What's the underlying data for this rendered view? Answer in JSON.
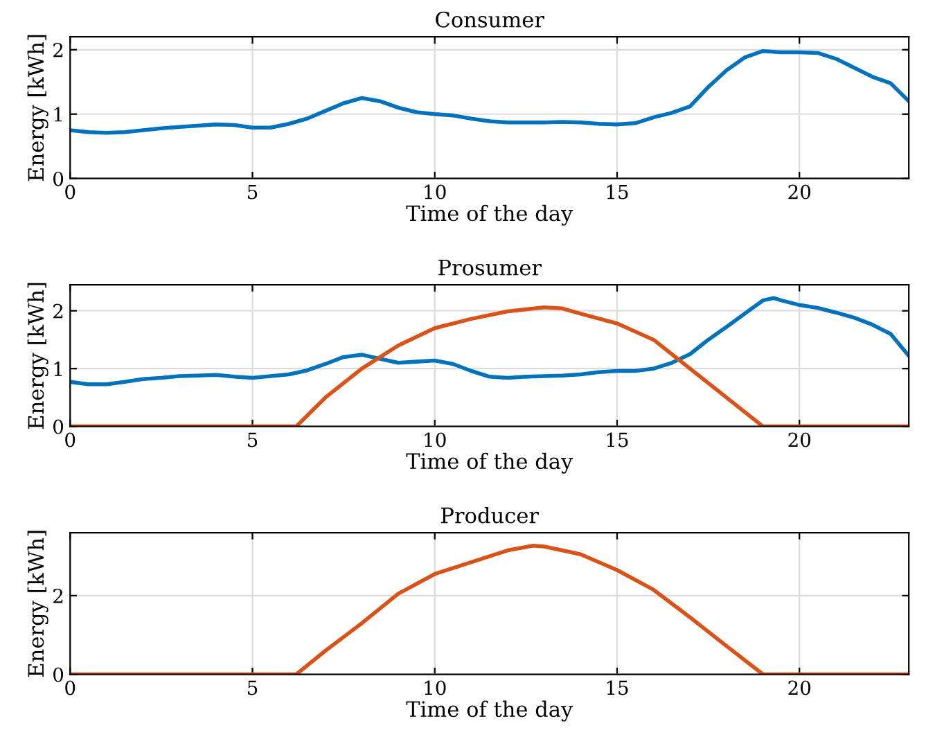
{
  "chart_data": [
    {
      "type": "line",
      "title": "Consumer",
      "xlabel": "Time of the day",
      "ylabel": "Energy [kWh]",
      "xlim": [
        0,
        23
      ],
      "xticks": [
        0,
        5,
        10,
        15,
        20
      ],
      "ylim": [
        0,
        2.2
      ],
      "yticks": [
        0,
        1,
        2
      ],
      "grid": true,
      "series": [
        {
          "color": "#0072bd",
          "x": [
            0,
            0.5,
            1,
            1.5,
            2,
            2.5,
            3,
            3.5,
            4,
            4.5,
            5,
            5.5,
            6,
            6.5,
            7,
            7.5,
            8,
            8.5,
            9,
            9.5,
            10,
            10.5,
            11,
            11.5,
            12,
            13,
            13.5,
            14,
            14.5,
            15,
            15.5,
            16,
            16.5,
            17,
            17.5,
            18,
            18.5,
            19,
            19.5,
            20,
            20.5,
            21,
            21.5,
            22,
            22.5,
            23
          ],
          "values": [
            0.75,
            0.72,
            0.71,
            0.72,
            0.75,
            0.78,
            0.8,
            0.82,
            0.84,
            0.83,
            0.79,
            0.79,
            0.85,
            0.93,
            1.05,
            1.17,
            1.25,
            1.2,
            1.1,
            1.03,
            1.0,
            0.98,
            0.93,
            0.89,
            0.87,
            0.87,
            0.88,
            0.87,
            0.85,
            0.84,
            0.86,
            0.95,
            1.02,
            1.12,
            1.42,
            1.68,
            1.88,
            1.98,
            1.96,
            1.96,
            1.95,
            1.86,
            1.72,
            1.58,
            1.48,
            1.2
          ]
        }
      ]
    },
    {
      "type": "line",
      "title": "Prosumer",
      "xlabel": "Time of the day",
      "ylabel": "Energy [kWh]",
      "xlim": [
        0,
        23
      ],
      "xticks": [
        0,
        5,
        10,
        15,
        20
      ],
      "ylim": [
        0,
        2.45
      ],
      "yticks": [
        0,
        1,
        2
      ],
      "grid": true,
      "series": [
        {
          "color": "#0072bd",
          "x": [
            0,
            0.5,
            1,
            1.5,
            2,
            2.5,
            3,
            3.5,
            4,
            4.5,
            5,
            5.5,
            6,
            6.5,
            7,
            7.5,
            8,
            8.5,
            9,
            9.5,
            10,
            10.5,
            11,
            11.5,
            12,
            12.5,
            13,
            13.5,
            14,
            14.5,
            15,
            15.5,
            16,
            16.5,
            17,
            17.5,
            18,
            18.5,
            19,
            19.3,
            19.5,
            20,
            20.5,
            21,
            21.5,
            22,
            22.5,
            23
          ],
          "values": [
            0.77,
            0.73,
            0.73,
            0.77,
            0.82,
            0.84,
            0.87,
            0.88,
            0.89,
            0.86,
            0.84,
            0.87,
            0.9,
            0.97,
            1.08,
            1.2,
            1.24,
            1.17,
            1.1,
            1.12,
            1.14,
            1.08,
            0.96,
            0.86,
            0.84,
            0.86,
            0.87,
            0.88,
            0.9,
            0.94,
            0.96,
            0.96,
            1.0,
            1.1,
            1.25,
            1.5,
            1.72,
            1.95,
            2.18,
            2.22,
            2.18,
            2.1,
            2.05,
            1.97,
            1.88,
            1.76,
            1.6,
            1.22
          ]
        },
        {
          "color": "#d95319",
          "x": [
            0,
            6.2,
            7,
            8,
            9,
            10,
            11,
            12,
            13,
            13.5,
            14,
            15,
            16,
            17,
            18,
            19,
            23
          ],
          "values": [
            0,
            0,
            0.5,
            1.0,
            1.4,
            1.7,
            1.86,
            1.99,
            2.06,
            2.04,
            1.95,
            1.78,
            1.5,
            1.0,
            0.5,
            0,
            0
          ]
        }
      ]
    },
    {
      "type": "line",
      "title": "Producer",
      "xlabel": "Time of the day",
      "ylabel": "Energy [kWh]",
      "xlim": [
        0,
        23
      ],
      "xticks": [
        0,
        5,
        10,
        15,
        20
      ],
      "ylim": [
        0,
        3.6
      ],
      "yticks": [
        0,
        2
      ],
      "grid": true,
      "series": [
        {
          "color": "#d95319",
          "x": [
            0,
            6.2,
            7,
            8,
            9,
            10,
            11,
            12,
            12.7,
            13,
            14,
            15,
            16,
            17,
            18,
            19,
            23
          ],
          "values": [
            0,
            0,
            0.6,
            1.3,
            2.05,
            2.55,
            2.85,
            3.15,
            3.27,
            3.25,
            3.05,
            2.65,
            2.15,
            1.45,
            0.72,
            0,
            0
          ]
        }
      ]
    }
  ]
}
